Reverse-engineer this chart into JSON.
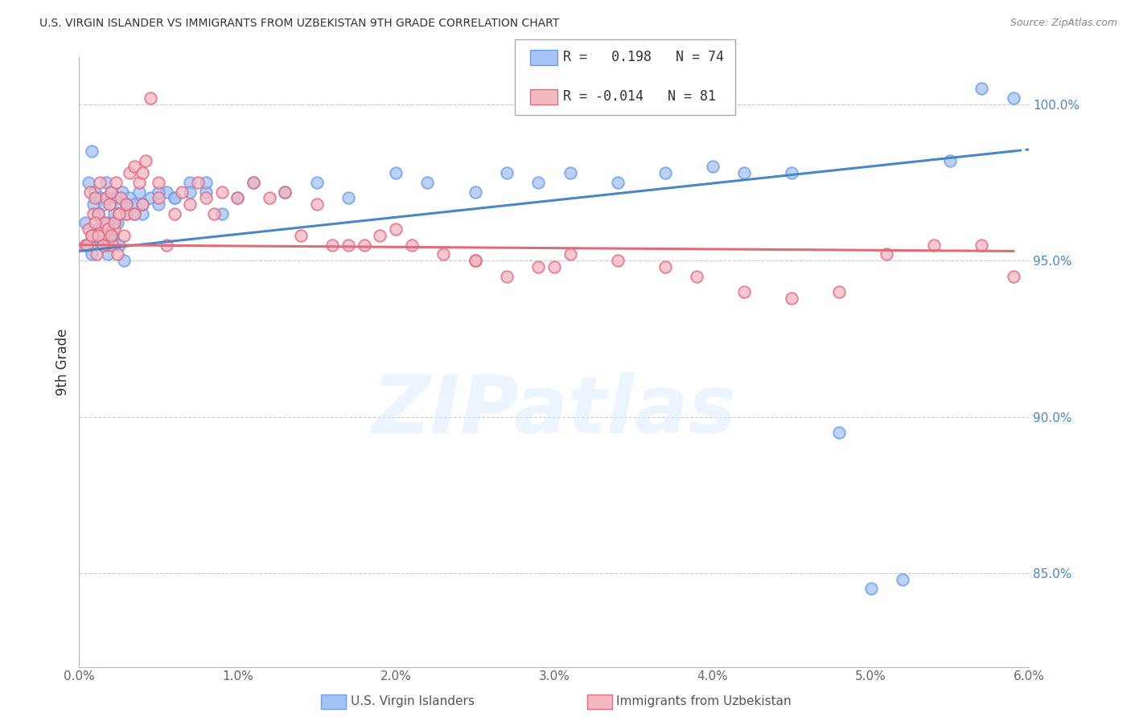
{
  "title": "U.S. VIRGIN ISLANDER VS IMMIGRANTS FROM UZBEKISTAN 9TH GRADE CORRELATION CHART",
  "source": "Source: ZipAtlas.com",
  "ylabel": "9th Grade",
  "xlim": [
    0.0,
    6.0
  ],
  "ylim": [
    82.0,
    101.5
  ],
  "xticks": [
    0.0,
    1.0,
    2.0,
    3.0,
    4.0,
    5.0,
    6.0
  ],
  "xticklabels": [
    "0.0%",
    "1.0%",
    "2.0%",
    "3.0%",
    "4.0%",
    "5.0%",
    "6.0%"
  ],
  "yticks": [
    85.0,
    90.0,
    95.0,
    100.0
  ],
  "yticklabels": [
    "85.0%",
    "90.0%",
    "95.0%",
    "100.0%"
  ],
  "blue_color": "#a4c2f4",
  "pink_color": "#f4b8c1",
  "blue_edge_color": "#6d9eeb",
  "pink_edge_color": "#e06c85",
  "blue_line_color": "#4a86c8",
  "pink_line_color": "#e06c7a",
  "legend_R_blue": "0.198",
  "legend_N_blue": "74",
  "legend_R_pink": "-0.014",
  "legend_N_pink": "81",
  "background_color": "#ffffff",
  "grid_color": "#cccccc",
  "blue_x": [
    0.04,
    0.06,
    0.07,
    0.08,
    0.09,
    0.1,
    0.11,
    0.12,
    0.13,
    0.14,
    0.15,
    0.16,
    0.17,
    0.18,
    0.19,
    0.2,
    0.21,
    0.22,
    0.23,
    0.24,
    0.25,
    0.26,
    0.27,
    0.28,
    0.3,
    0.32,
    0.35,
    0.38,
    0.4,
    0.45,
    0.5,
    0.55,
    0.6,
    0.7,
    0.8,
    0.9,
    1.0,
    1.1,
    1.3,
    1.5,
    1.7,
    2.0,
    2.2,
    2.5,
    2.7,
    2.9,
    3.1,
    3.4,
    3.7,
    4.0,
    4.2,
    4.5,
    4.8,
    5.0,
    5.2,
    5.5,
    5.7,
    5.9,
    0.05,
    0.08,
    0.1,
    0.12,
    0.15,
    0.18,
    0.2,
    0.22,
    0.25,
    0.3,
    0.35,
    0.4,
    0.5,
    0.6,
    0.7,
    0.8
  ],
  "blue_y": [
    96.2,
    97.5,
    95.5,
    98.5,
    96.8,
    97.2,
    95.8,
    96.5,
    97.0,
    96.2,
    95.5,
    96.8,
    97.5,
    95.2,
    96.0,
    97.2,
    95.8,
    96.5,
    97.0,
    96.2,
    95.5,
    96.8,
    97.2,
    95.0,
    96.5,
    97.0,
    96.8,
    97.2,
    96.5,
    97.0,
    96.8,
    97.2,
    97.0,
    97.5,
    97.2,
    96.5,
    97.0,
    97.5,
    97.2,
    97.5,
    97.0,
    97.8,
    97.5,
    97.2,
    97.8,
    97.5,
    97.8,
    97.5,
    97.8,
    98.0,
    97.8,
    97.8,
    89.5,
    84.5,
    84.8,
    98.2,
    100.5,
    100.2,
    95.5,
    95.2,
    95.8,
    96.0,
    95.5,
    96.2,
    95.8,
    96.2,
    96.5,
    96.8,
    96.5,
    96.8,
    97.2,
    97.0,
    97.2,
    97.5
  ],
  "pink_x": [
    0.04,
    0.06,
    0.07,
    0.08,
    0.09,
    0.1,
    0.11,
    0.12,
    0.13,
    0.14,
    0.15,
    0.16,
    0.17,
    0.18,
    0.19,
    0.2,
    0.21,
    0.22,
    0.23,
    0.24,
    0.25,
    0.26,
    0.28,
    0.3,
    0.32,
    0.35,
    0.38,
    0.4,
    0.42,
    0.45,
    0.5,
    0.55,
    0.65,
    0.75,
    0.85,
    1.0,
    1.1,
    1.3,
    1.5,
    1.7,
    1.9,
    2.1,
    2.3,
    2.5,
    2.7,
    2.9,
    3.1,
    3.4,
    3.7,
    3.9,
    4.2,
    4.5,
    4.8,
    5.1,
    5.4,
    5.7,
    5.9,
    0.05,
    0.08,
    0.1,
    0.12,
    0.15,
    0.18,
    0.2,
    0.22,
    0.25,
    0.3,
    0.35,
    0.4,
    0.5,
    0.6,
    0.7,
    0.8,
    0.9,
    1.2,
    1.4,
    1.6,
    1.8,
    2.0,
    2.5,
    3.0
  ],
  "pink_y": [
    95.5,
    96.0,
    97.2,
    95.8,
    96.5,
    97.0,
    95.2,
    96.5,
    97.5,
    96.0,
    95.8,
    96.2,
    97.0,
    95.5,
    96.8,
    97.2,
    95.5,
    96.0,
    97.5,
    95.2,
    96.5,
    97.0,
    95.8,
    96.5,
    97.8,
    98.0,
    97.5,
    97.8,
    98.2,
    100.2,
    97.5,
    95.5,
    97.2,
    97.5,
    96.5,
    97.0,
    97.5,
    97.2,
    96.8,
    95.5,
    95.8,
    95.5,
    95.2,
    95.0,
    94.5,
    94.8,
    95.2,
    95.0,
    94.8,
    94.5,
    94.0,
    93.8,
    94.0,
    95.2,
    95.5,
    95.5,
    94.5,
    95.5,
    95.8,
    96.2,
    95.8,
    95.5,
    96.0,
    95.8,
    96.2,
    96.5,
    96.8,
    96.5,
    96.8,
    97.0,
    96.5,
    96.8,
    97.0,
    97.2,
    97.0,
    95.8,
    95.5,
    95.5,
    96.0,
    95.0,
    94.8
  ]
}
